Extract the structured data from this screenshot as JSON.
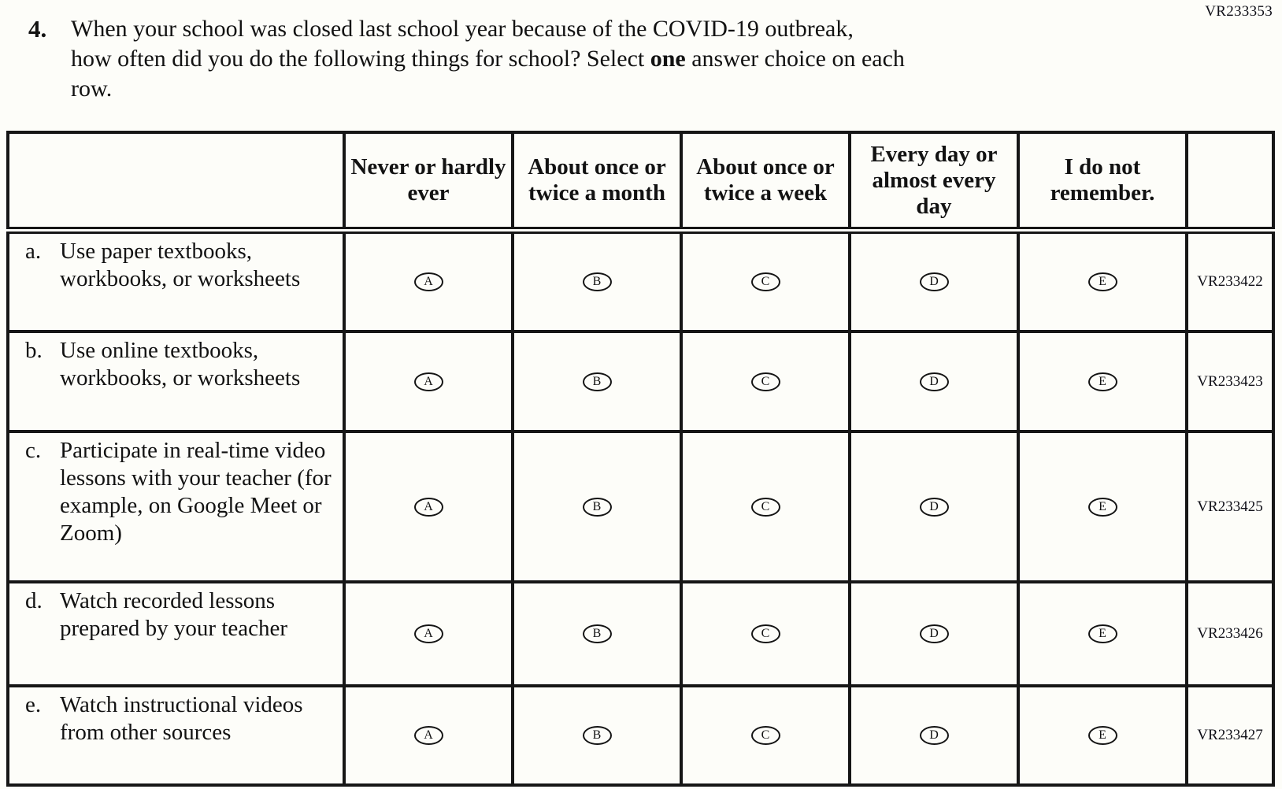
{
  "page": {
    "form_code": "VR233353"
  },
  "question": {
    "number": "4.",
    "line1": "When your school was closed last school year because of the COVID-19 outbreak,",
    "line2a": "how often did you do the following things for school? Select ",
    "bold_word": "one",
    "line2b": " answer choice on each",
    "line3": "row.",
    "full_text": "When your school was closed last school year because of the COVID-19 outbreak, how often did you do the following things for school? Select one answer choice on each row."
  },
  "table": {
    "column_headers": [
      "Never or hardly ever",
      "About once or twice a month",
      "About once or twice a week",
      "Every day or almost every day",
      "I do not remember."
    ],
    "bubble_letters": [
      "A",
      "B",
      "C",
      "D",
      "E"
    ],
    "rows": [
      {
        "letter": "a.",
        "label": "Use paper textbooks, workbooks, or worksheets",
        "code": "VR233422"
      },
      {
        "letter": "b.",
        "label": "Use online textbooks, workbooks, or worksheets",
        "code": "VR233423"
      },
      {
        "letter": "c.",
        "label": "Participate in real-time video lessons with your teacher (for example, on Google Meet or Zoom)",
        "code": "VR233425"
      },
      {
        "letter": "d.",
        "label": "Watch recorded lessons prepared by your teacher",
        "code": "VR233426"
      },
      {
        "letter": "e.",
        "label": "Watch instructional videos from other sources",
        "code": "VR233427"
      }
    ]
  }
}
